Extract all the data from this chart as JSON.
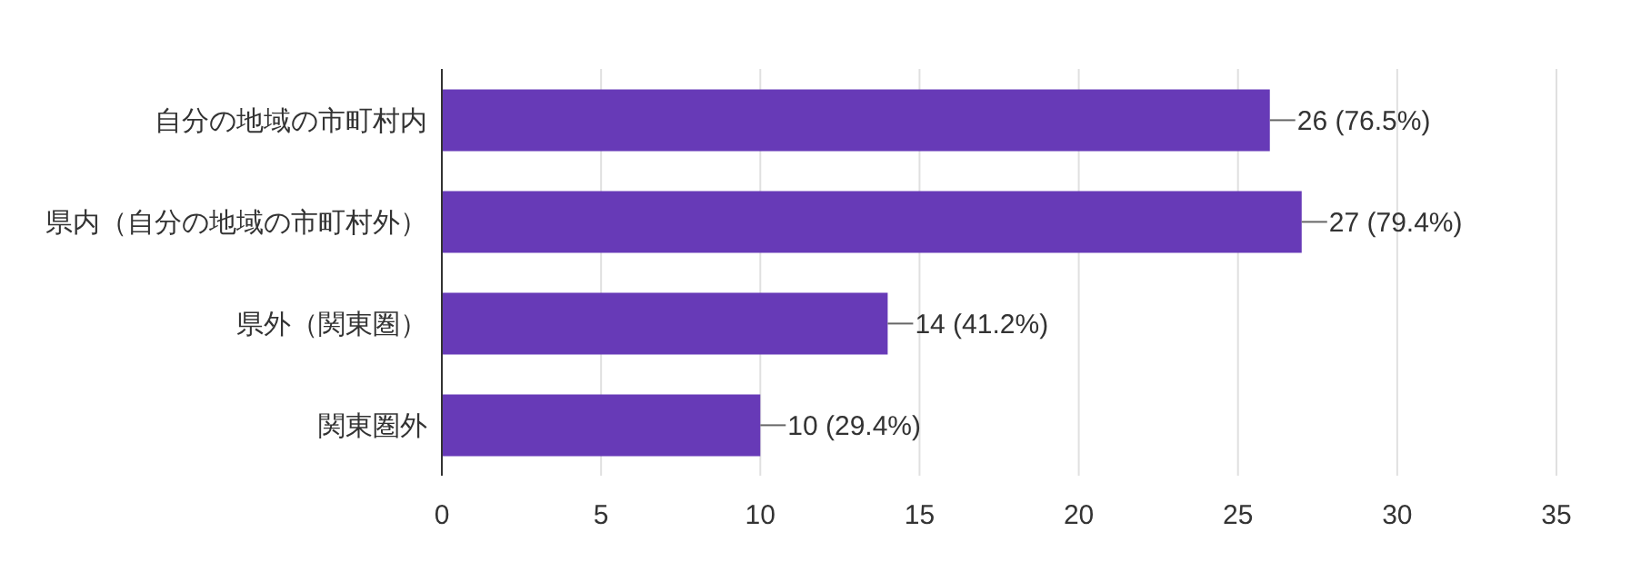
{
  "chart_data": {
    "type": "bar",
    "orientation": "horizontal",
    "categories": [
      "自分の地域の市町村内",
      "県内（自分の地域の市町村外）",
      "県外（関東圏）",
      "関東圏外"
    ],
    "values": [
      26,
      27,
      14,
      10
    ],
    "color": "#673ab7",
    "value_labels": [
      "26 (76.5%)",
      "27 (79.4%)",
      "14 (41.2%)",
      "10 (29.4%)"
    ],
    "xlim": [
      0,
      35
    ],
    "xticks": [
      0,
      5,
      10,
      15,
      20,
      25,
      30,
      35
    ],
    "grid": "x"
  }
}
